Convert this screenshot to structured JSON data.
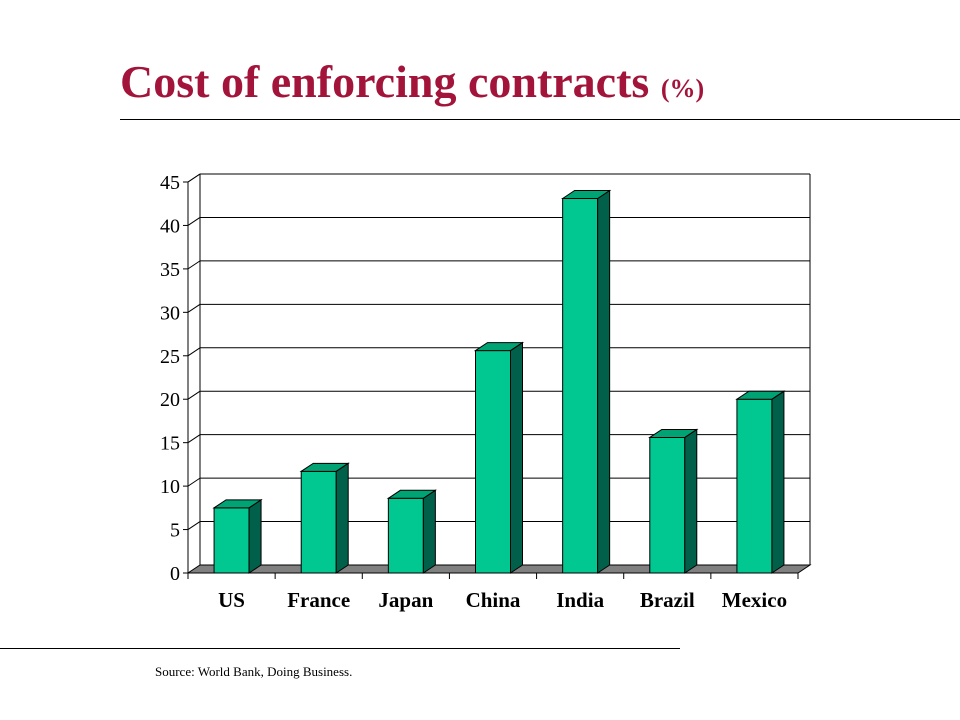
{
  "slide": {
    "title": "Cost of enforcing contracts",
    "title_unit": "(%)",
    "title_color": "#a3143a",
    "source": "Source:  World Bank, Doing Business."
  },
  "chart_data": {
    "type": "bar",
    "title": "",
    "xlabel": "",
    "ylabel": "",
    "categories": [
      "US",
      "France",
      "Japan",
      "China",
      "India",
      "Brazil",
      "Mexico"
    ],
    "values": [
      7.5,
      11.7,
      8.6,
      25.6,
      43.1,
      15.6,
      20.0
    ],
    "ylim": [
      0,
      45
    ],
    "yticks": [
      0,
      5,
      10,
      15,
      20,
      25,
      30,
      35,
      40,
      45
    ],
    "grid": true,
    "style": "3d-column",
    "colors": {
      "bar_front": "#00c890",
      "bar_side": "#00604a",
      "bar_top": "#00a474",
      "floor": "#808080"
    }
  }
}
